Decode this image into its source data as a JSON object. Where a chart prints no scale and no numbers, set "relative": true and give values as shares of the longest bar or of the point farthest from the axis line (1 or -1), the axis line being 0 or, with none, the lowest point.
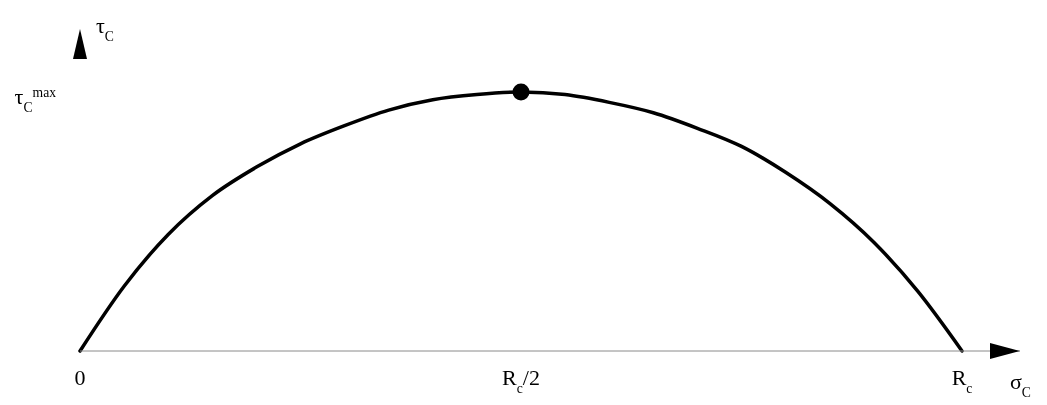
{
  "chart_data": {
    "type": "line",
    "xlabel": "σ$_{C}$",
    "ylabel": "τ$_{C}$",
    "relative": true,
    "categories": [
      "0",
      null,
      null,
      null,
      null,
      null,
      null,
      null,
      null,
      null,
      "R$_{c}$/2",
      null,
      null,
      null,
      null,
      null,
      null,
      null,
      null,
      null,
      "R$_{c}$"
    ],
    "series": [
      {
        "color": "#000000",
        "values": [
          0,
          0.25,
          0.45,
          0.6,
          0.71,
          0.8,
          0.87,
          0.93,
          0.97,
          0.99,
          1,
          0.99,
          0.96,
          0.92,
          0.86,
          0.79,
          0.69,
          0.57,
          0.42,
          0.23,
          0
        ]
      },
      {
        "type": "scatter",
        "color": "#000000",
        "marker": "circle",
        "values": [
          null,
          null,
          null,
          null,
          null,
          null,
          null,
          null,
          null,
          null,
          1,
          null,
          null,
          null,
          null,
          null,
          null,
          null,
          null,
          null,
          null
        ]
      }
    ],
    "annotations": [
      "τ$_{C}$$^{max}$"
    ]
  }
}
